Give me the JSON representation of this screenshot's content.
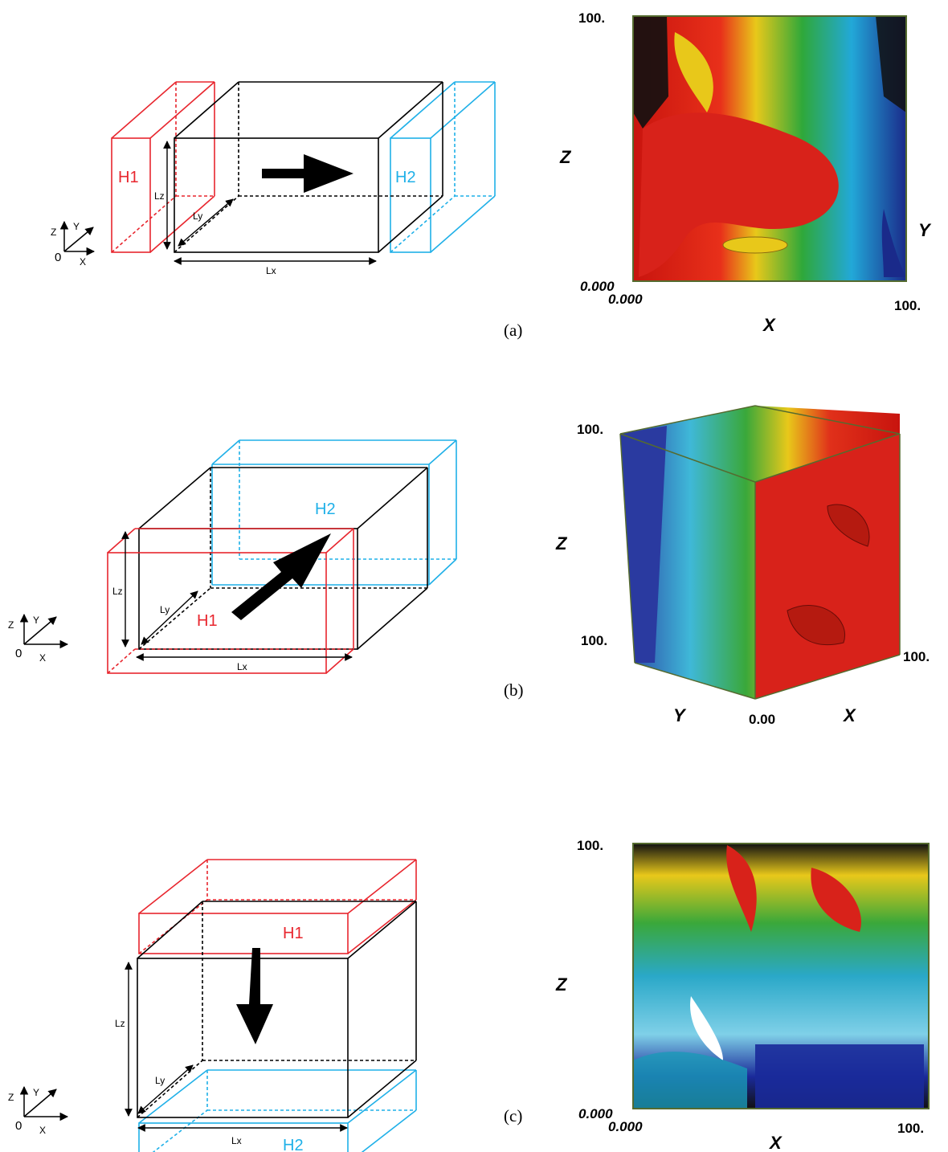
{
  "panels": [
    {
      "caption": "(a)",
      "diagram": {
        "h1": "H1",
        "h2": "H2",
        "lx": "Lx",
        "ly": "Ly",
        "lz": "Lz",
        "axes": {
          "origin": "0",
          "x": "X",
          "y": "Y",
          "z": "Z"
        }
      },
      "render": {
        "z_label": "Z",
        "x_label": "X",
        "y_label": "Y",
        "z_top": "100.",
        "z_bottom": "0.000",
        "x_left": "0.000",
        "x_right": "100."
      }
    },
    {
      "caption": "(b)",
      "diagram": {
        "h1": "H1",
        "h2": "H2",
        "lx": "Lx",
        "ly": "Ly",
        "lz": "Lz",
        "axes": {
          "origin": "0",
          "x": "X",
          "y": "Y",
          "z": "Z"
        }
      },
      "render": {
        "z_label": "Z",
        "x_label": "X",
        "y_label": "Y",
        "z_top": "100.",
        "y_far": "100.",
        "origin": "0.00",
        "x_right": "100."
      }
    },
    {
      "caption": "(c)",
      "diagram": {
        "h1": "H1",
        "h2": "H2",
        "lx": "Lx",
        "ly": "Ly",
        "lz": "Lz",
        "axes": {
          "origin": "0",
          "x": "X",
          "y": "Y",
          "z": "Z"
        }
      },
      "render": {
        "z_label": "Z",
        "x_label": "X",
        "z_top": "100.",
        "z_bottom": "0.000",
        "x_left": "0.000",
        "x_right": "100."
      }
    }
  ],
  "colors": {
    "h1": "#e8262e",
    "h2": "#1fb0e8",
    "domain": "#000000"
  },
  "isosurface_colors": [
    "#d8221a",
    "#e8c81a",
    "#3aa83a",
    "#1a9ad8",
    "#1a2a9a"
  ]
}
